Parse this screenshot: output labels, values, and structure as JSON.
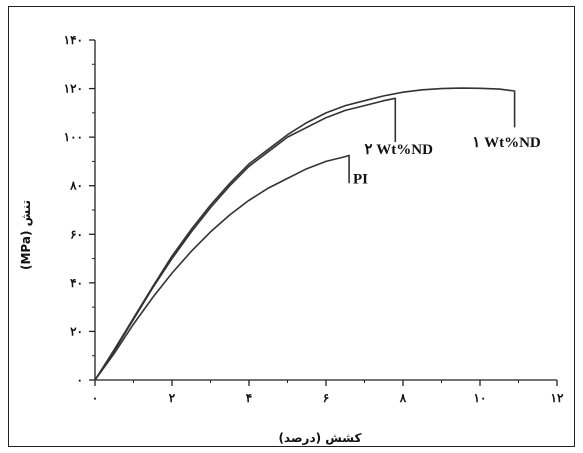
{
  "chart_data": {
    "type": "line",
    "title": "",
    "xlabel": "کشش (درصد)",
    "ylabel": "تنش (MPa)",
    "xlim": [
      0,
      12
    ],
    "ylim": [
      0,
      140
    ],
    "grid": false,
    "x_ticks": [
      0,
      2,
      4,
      6,
      8,
      10,
      12
    ],
    "x_tick_labels": [
      "۰",
      "۲",
      "۴",
      "۶",
      "۸",
      "۱۰",
      "۱۲"
    ],
    "y_ticks": [
      0,
      20,
      40,
      60,
      80,
      100,
      120,
      140
    ],
    "y_tick_labels": [
      "۰",
      "۲۰",
      "۴۰",
      "۶۰",
      "۸۰",
      "۱۰۰",
      "۱۲۰",
      "۱۴۰"
    ],
    "series": [
      {
        "name": "PI",
        "points": [
          [
            0,
            0
          ],
          [
            0.5,
            11
          ],
          [
            1,
            23
          ],
          [
            1.5,
            34
          ],
          [
            2,
            44
          ],
          [
            2.5,
            53
          ],
          [
            3,
            61
          ],
          [
            3.5,
            68
          ],
          [
            4,
            74
          ],
          [
            4.5,
            79
          ],
          [
            5,
            83
          ],
          [
            5.5,
            87
          ],
          [
            6,
            90
          ],
          [
            6.5,
            92
          ],
          [
            6.6,
            92.5
          ],
          [
            6.6,
            81
          ]
        ]
      },
      {
        "name": "۲ Wt%ND",
        "points": [
          [
            0,
            0
          ],
          [
            0.5,
            12
          ],
          [
            1,
            25
          ],
          [
            1.5,
            38
          ],
          [
            2,
            50
          ],
          [
            2.5,
            61
          ],
          [
            3,
            71
          ],
          [
            3.5,
            80
          ],
          [
            4,
            88
          ],
          [
            4.5,
            94
          ],
          [
            5,
            100
          ],
          [
            5.5,
            104
          ],
          [
            6,
            108
          ],
          [
            6.5,
            111
          ],
          [
            7,
            113
          ],
          [
            7.5,
            115
          ],
          [
            7.8,
            116
          ],
          [
            7.8,
            98
          ]
        ]
      },
      {
        "name": "۱ Wt%ND",
        "points": [
          [
            0,
            0
          ],
          [
            0.5,
            12.5
          ],
          [
            1,
            25.5
          ],
          [
            1.5,
            38.5
          ],
          [
            2,
            51
          ],
          [
            2.5,
            62
          ],
          [
            3,
            72
          ],
          [
            3.5,
            81
          ],
          [
            4,
            89
          ],
          [
            4.5,
            95
          ],
          [
            5,
            101
          ],
          [
            5.5,
            106
          ],
          [
            6,
            110
          ],
          [
            6.5,
            113
          ],
          [
            7,
            115
          ],
          [
            7.5,
            117
          ],
          [
            8,
            118.5
          ],
          [
            8.5,
            119.5
          ],
          [
            9,
            120
          ],
          [
            9.5,
            120.2
          ],
          [
            10,
            120.1
          ],
          [
            10.5,
            119.8
          ],
          [
            10.9,
            119
          ],
          [
            10.9,
            104
          ]
        ]
      }
    ],
    "annotations": [
      {
        "text": "PI",
        "x": 6.7,
        "y": 81
      },
      {
        "text": "۲ Wt%ND",
        "x": 7.0,
        "y": 93
      },
      {
        "text": "۱ Wt%ND",
        "x": 9.8,
        "y": 96
      }
    ]
  }
}
